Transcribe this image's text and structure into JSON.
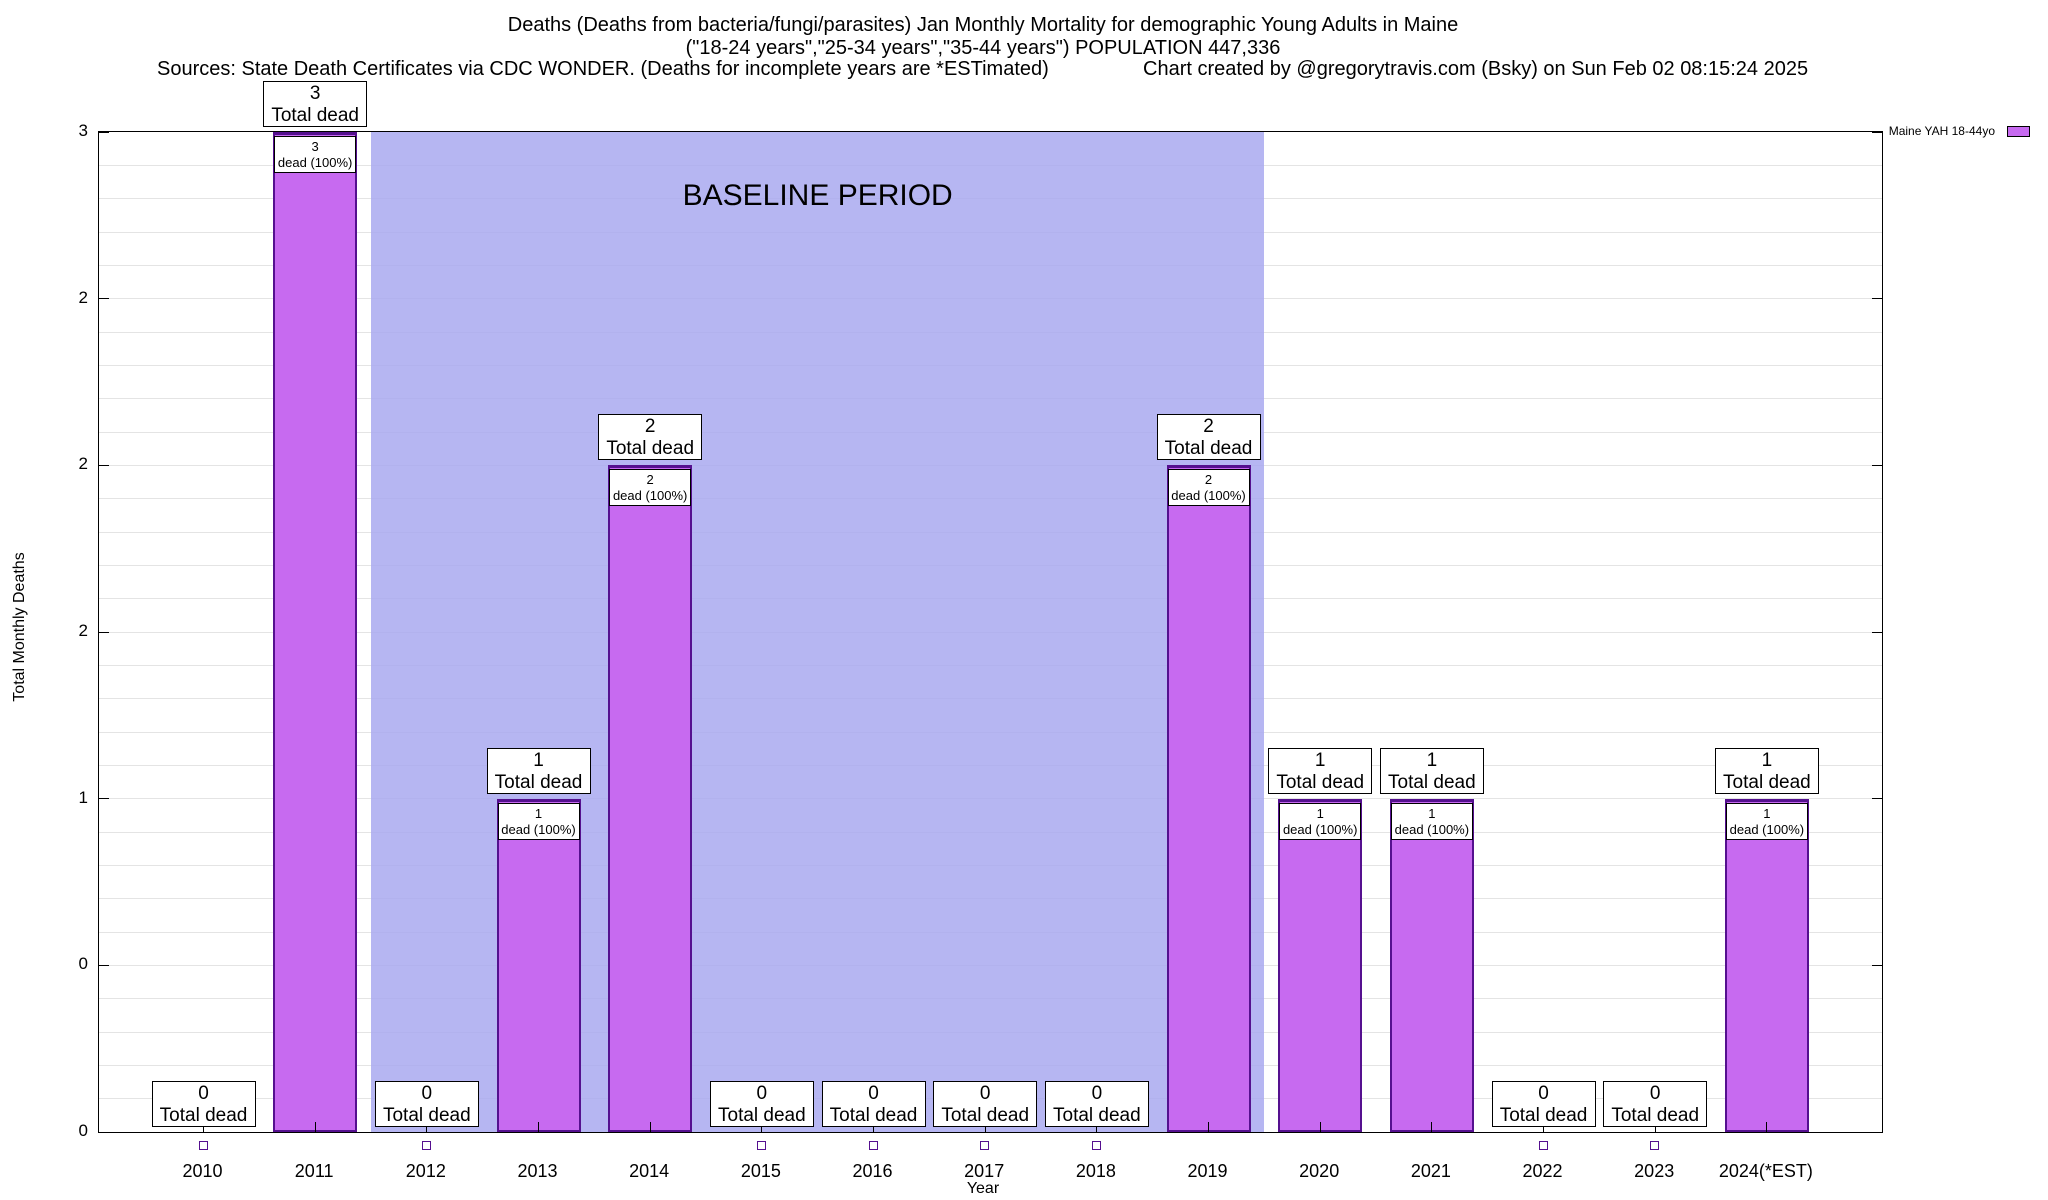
{
  "page": {
    "title_line1": "Deaths (Deaths from bacteria/fungi/parasites) Jan Monthly Mortality for demographic Young Adults in Maine",
    "title_line2": "(\"18-24 years\",\"25-34 years\",\"35-44 years\") POPULATION 447,336",
    "sources_line": "Sources: State Death Certificates via CDC WONDER. (Deaths for incomplete years are *ESTimated)",
    "credit_line": "Chart created by @gregorytravis.com (Bsky) on Sun Feb 02 08:15:24 2025"
  },
  "legend": {
    "label": "Maine YAH 18-44yo"
  },
  "chart_data": {
    "type": "bar",
    "title": "Deaths (Deaths from bacteria/fungi/parasites) Jan Monthly Mortality for demographic Young Adults in Maine",
    "subtitle": "(\"18-24 years\",\"25-34 years\",\"35-44 years\") POPULATION 447,336",
    "categories": [
      "2010",
      "2011",
      "2012",
      "2013",
      "2014",
      "2015",
      "2016",
      "2017",
      "2018",
      "2019",
      "2020",
      "2021",
      "2022",
      "2023",
      "2024(*EST)"
    ],
    "values": [
      0,
      3,
      0,
      1,
      2,
      0,
      0,
      0,
      0,
      2,
      1,
      1,
      0,
      0,
      1
    ],
    "series": [
      {
        "name": "Maine YAH 18-44yo",
        "values": [
          0,
          3,
          0,
          1,
          2,
          0,
          0,
          0,
          0,
          2,
          1,
          1,
          0,
          0,
          1
        ]
      }
    ],
    "xlabel": "Year",
    "ylabel": "Total Monthly Deaths",
    "ylim": [
      0,
      3
    ],
    "grid": "horizontal minor gridlines every 0.1",
    "legend_position": "top-right",
    "y_ticks": [
      {
        "v": 0,
        "label": "0"
      },
      {
        "v": 0.5,
        "label": "0"
      },
      {
        "v": 1,
        "label": "1"
      },
      {
        "v": 1.5,
        "label": "2"
      },
      {
        "v": 2,
        "label": "2"
      },
      {
        "v": 2.5,
        "label": "2"
      },
      {
        "v": 3,
        "label": "3"
      }
    ],
    "bar_total_label_suffix": "Total dead",
    "bar_inner_label_suffix": "dead (100%)",
    "annotations": [
      {
        "label": "BASELINE PERIOD",
        "x_start": 2011.5,
        "x_end": 2019.5,
        "x_base_year": 2010
      }
    ]
  },
  "colors": {
    "bar_fill": "#c76af0",
    "bar_border": "#55108f",
    "baseline_fill": "#a9a9f0",
    "grid": "#e4e4e4"
  }
}
